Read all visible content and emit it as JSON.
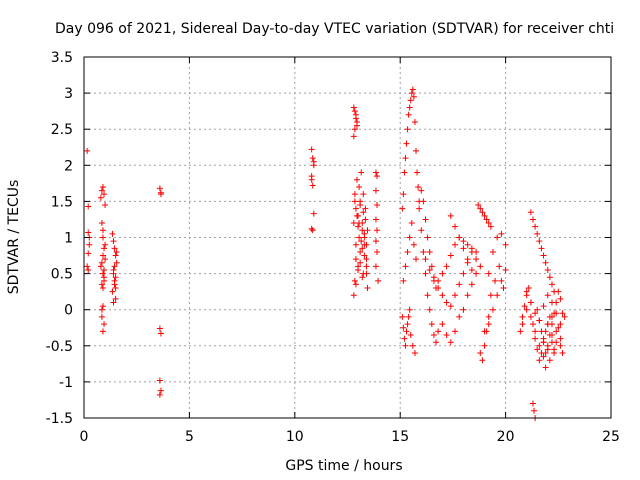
{
  "chart_data": {
    "type": "scatter",
    "title": "Day 096 of 2021, Sidereal Day-to-day VTEC variation (SDTVAR) for receiver chti",
    "xlabel": "GPS time / hours",
    "ylabel": "SDTVAR / TECUs",
    "xlim": [
      0,
      25
    ],
    "ylim": [
      -1.5,
      3.5
    ],
    "xticks": [
      0,
      5,
      10,
      15,
      20,
      25
    ],
    "yticks": [
      -1.5,
      -1,
      -0.5,
      0,
      0.5,
      1,
      1.5,
      2,
      2.5,
      3,
      3.5
    ],
    "xtick_labels": [
      "0",
      "5",
      "10",
      "15",
      "20",
      "25"
    ],
    "ytick_labels": [
      "-1.5",
      "-1",
      "-0.5",
      "0",
      "0.5",
      "1",
      "1.5",
      "2",
      "2.5",
      "3",
      "3.5"
    ],
    "grid": true,
    "marker": "+",
    "color": "#ff0000",
    "series": [
      {
        "name": "SDTVAR",
        "x": [
          0.15,
          0.2,
          0.2,
          0.25,
          0.2,
          0.15,
          0.2,
          0.25,
          0.8,
          0.85,
          0.9,
          0.95,
          1.0,
          0.85,
          0.9,
          0.95,
          1.0,
          0.8,
          0.9,
          0.95,
          0.85,
          0.9,
          0.95,
          0.85,
          0.9,
          1.0,
          0.9,
          0.85,
          0.95,
          0.9,
          0.85,
          0.95,
          0.9,
          1.35,
          1.4,
          1.45,
          1.5,
          1.55,
          1.4,
          1.5,
          1.45,
          1.35,
          1.5,
          1.4,
          1.55,
          1.45,
          1.4,
          1.5,
          1.45,
          3.6,
          3.65,
          3.6,
          3.65,
          3.6,
          3.65,
          3.6,
          3.65,
          10.8,
          10.85,
          10.9,
          10.8,
          10.85,
          10.9,
          10.8,
          10.85,
          10.9,
          10.8,
          12.8,
          12.85,
          12.9,
          12.95,
          12.8,
          12.85,
          12.9,
          12.95,
          12.8,
          12.85,
          12.9,
          12.95,
          13.0,
          13.05,
          13.1,
          13.15,
          13.2,
          13.25,
          13.3,
          13.35,
          13.4,
          13.45,
          12.85,
          12.9,
          13.0,
          13.05,
          13.1,
          13.2,
          13.25,
          13.3,
          13.4,
          13.45,
          12.8,
          12.9,
          13.0,
          13.1,
          13.2,
          13.3,
          13.4,
          12.85,
          12.95,
          13.05,
          13.15,
          13.25,
          13.35,
          12.9,
          13.0,
          13.1,
          13.2,
          13.3,
          13.4,
          13.85,
          13.9,
          13.85,
          13.9,
          13.85,
          13.9,
          13.85,
          13.9,
          13.85,
          13.95,
          15.1,
          15.15,
          15.2,
          15.25,
          15.3,
          15.35,
          15.4,
          15.45,
          15.5,
          15.55,
          15.6,
          15.65,
          15.7,
          15.75,
          15.8,
          15.85,
          15.9,
          15.1,
          15.15,
          15.2,
          15.25,
          15.3,
          15.35,
          15.4,
          15.45,
          15.5,
          15.6,
          15.7,
          15.15,
          15.25,
          15.35,
          15.45,
          15.55,
          15.65,
          15.75,
          15.9,
          16.0,
          16.1,
          16.2,
          16.3,
          16.4,
          16.5,
          16.6,
          16.7,
          16.8,
          16.0,
          16.1,
          16.2,
          16.3,
          16.4,
          16.5,
          16.6,
          16.7,
          16.2,
          16.4,
          16.6,
          16.8,
          17.0,
          17.2,
          17.4,
          17.6,
          17.8,
          18.0,
          18.2,
          18.4,
          16.8,
          17.0,
          17.2,
          17.4,
          17.6,
          17.8,
          18.0,
          18.2,
          18.4,
          18.6,
          17.0,
          17.2,
          17.4,
          17.6,
          17.8,
          18.0,
          18.2,
          18.4,
          18.6,
          18.8,
          17.4,
          17.6,
          17.8,
          18.0,
          18.2,
          18.4,
          18.6,
          18.7,
          18.8,
          18.9,
          19.0,
          19.1,
          19.2,
          19.3,
          18.8,
          18.9,
          19.0,
          19.1,
          19.2,
          19.2,
          19.4,
          19.6,
          19.8,
          20.0,
          19.3,
          19.5,
          19.7,
          19.9,
          19.0,
          19.2,
          19.4,
          19.6,
          19.8,
          20.0,
          20.7,
          20.8,
          20.9,
          21.0,
          21.1,
          21.2,
          21.3,
          21.4,
          21.5,
          21.6,
          21.7,
          21.8,
          21.9,
          22.0,
          22.1,
          22.2,
          22.3,
          22.4,
          22.5,
          22.6,
          22.7,
          20.8,
          21.0,
          21.2,
          21.4,
          21.6,
          21.8,
          22.0,
          22.2,
          22.4,
          22.6,
          21.0,
          21.2,
          21.4,
          21.6,
          21.8,
          22.0,
          22.2,
          22.4,
          22.6,
          22.8,
          21.2,
          21.3,
          21.4,
          21.5,
          21.6,
          21.7,
          21.8,
          21.9,
          22.0,
          22.1,
          22.2,
          22.3,
          21.5,
          21.6,
          21.7,
          21.8,
          21.9,
          22.0,
          22.1,
          22.2,
          22.3,
          22.4,
          22.5,
          22.6,
          22.7,
          21.3,
          21.35,
          21.4,
          21.8,
          21.9,
          22.0,
          22.1,
          22.2,
          22.3
        ],
        "y": [
          2.2,
          1.43,
          1.07,
          0.9,
          0.78,
          0.6,
          0.55,
          1.0,
          1.55,
          1.65,
          1.7,
          1.6,
          1.45,
          1.2,
          1.0,
          0.85,
          0.7,
          0.6,
          0.5,
          0.45,
          0.35,
          0.3,
          0.4,
          0.65,
          0.75,
          0.9,
          0.05,
          -0.1,
          -0.2,
          -0.3,
          0.0,
          0.55,
          1.1,
          1.05,
          0.95,
          0.85,
          0.75,
          0.65,
          0.55,
          0.45,
          0.35,
          0.25,
          0.15,
          0.1,
          0.8,
          0.6,
          0.5,
          0.3,
          0.4,
          1.68,
          1.62,
          -0.26,
          -0.33,
          -0.98,
          -1.12,
          -1.18,
          1.6,
          2.22,
          2.1,
          2.05,
          1.8,
          1.72,
          1.33,
          1.12,
          1.1,
          2.0,
          1.85,
          2.8,
          2.75,
          2.65,
          2.55,
          2.4,
          2.5,
          2.7,
          2.6,
          1.2,
          1.6,
          1.4,
          1.8,
          1.3,
          1.7,
          1.5,
          1.9,
          1.2,
          1.6,
          1.0,
          1.4,
          0.9,
          1.1,
          0.4,
          0.7,
          0.6,
          1.0,
          0.8,
          1.1,
          0.5,
          0.9,
          0.7,
          0.3,
          0.2,
          0.35,
          0.55,
          0.65,
          0.45,
          0.75,
          0.5,
          1.5,
          1.3,
          1.2,
          0.95,
          1.35,
          1.25,
          0.9,
          1.15,
          1.45,
          0.85,
          1.05,
          0.6,
          1.9,
          1.85,
          1.65,
          1.45,
          1.25,
          1.1,
          0.95,
          0.8,
          0.6,
          0.4,
          1.4,
          1.6,
          1.9,
          2.1,
          2.3,
          2.5,
          2.7,
          2.8,
          2.9,
          3.0,
          3.05,
          2.95,
          2.6,
          2.2,
          1.9,
          1.7,
          1.5,
          -0.1,
          -0.25,
          -0.4,
          -0.5,
          -0.3,
          -0.2,
          -0.1,
          0.0,
          -0.35,
          -0.5,
          -0.6,
          0.4,
          0.6,
          0.8,
          1.0,
          1.2,
          0.9,
          0.7,
          1.4,
          1.1,
          0.8,
          0.5,
          0.2,
          0.0,
          -0.2,
          -0.35,
          -0.45,
          -0.3,
          1.65,
          1.5,
          1.25,
          1.0,
          0.8,
          0.6,
          0.4,
          0.3,
          0.7,
          0.55,
          0.45,
          0.4,
          0.5,
          0.6,
          0.75,
          0.9,
          1.0,
          0.85,
          0.7,
          0.55,
          0.3,
          0.2,
          0.1,
          0.05,
          0.2,
          0.35,
          0.5,
          0.65,
          0.8,
          0.7,
          -0.2,
          -0.35,
          -0.45,
          -0.3,
          -0.1,
          0.0,
          0.2,
          0.35,
          0.5,
          0.6,
          1.3,
          1.15,
          1.0,
          0.95,
          0.9,
          0.85,
          0.8,
          1.45,
          1.4,
          1.35,
          1.3,
          1.25,
          1.2,
          1.15,
          -0.6,
          -0.7,
          -0.5,
          -0.3,
          -0.1,
          0.5,
          0.8,
          1.0,
          1.05,
          0.9,
          0.2,
          0.4,
          0.6,
          0.3,
          -0.3,
          -0.2,
          0.0,
          0.2,
          0.4,
          0.55,
          -0.3,
          -0.1,
          0.05,
          0.2,
          0.3,
          0.1,
          -0.2,
          -0.4,
          -0.55,
          -0.7,
          -0.6,
          -0.45,
          -0.3,
          -0.2,
          -0.1,
          -0.35,
          -0.55,
          -0.45,
          -0.25,
          -0.4,
          -0.6,
          -0.2,
          0.0,
          -0.1,
          -0.3,
          -0.5,
          -0.4,
          -0.2,
          -0.1,
          -0.3,
          -0.5,
          0.25,
          0.1,
          -0.05,
          -0.15,
          0.05,
          0.2,
          0.1,
          -0.05,
          -0.2,
          -0.1,
          1.35,
          1.25,
          1.15,
          1.05,
          0.95,
          0.85,
          0.75,
          0.65,
          0.55,
          0.45,
          0.35,
          0.25,
          0.0,
          -0.15,
          -0.3,
          -0.45,
          -0.6,
          -0.5,
          -0.35,
          -0.2,
          -0.05,
          0.1,
          0.25,
          0.15,
          -0.05,
          -1.3,
          -1.4,
          -1.5,
          -0.65,
          -0.8,
          -0.55,
          -0.7,
          -0.45,
          -0.6
        ]
      }
    ]
  }
}
